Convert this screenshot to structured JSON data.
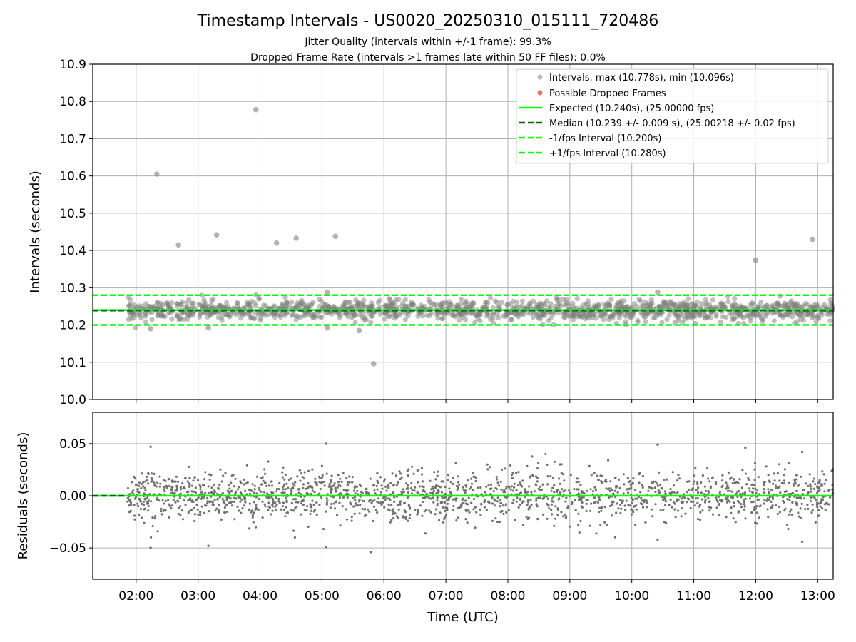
{
  "title": "Timestamp Intervals - US0020_20250310_015111_720486",
  "subtitle_line1": "Jitter Quality (intervals within +/-1 frame): 99.3%",
  "subtitle_line2": "Dropped Frame Rate (intervals >1 frames late within 50 FF files): 0.0%",
  "colors": {
    "points": "#808080",
    "dropped": "#ff6666",
    "expected": "#00ff00",
    "median": "#006400",
    "fps_band": "#00ff00",
    "grid": "#b0b0b0"
  },
  "chart_data": [
    {
      "type": "scatter",
      "ylabel": "Intervals (seconds)",
      "ylim": [
        10.0,
        10.9
      ],
      "xlim_hours": [
        1.3,
        13.25
      ],
      "yticks": [
        "10.0",
        "10.1",
        "10.2",
        "10.3",
        "10.4",
        "10.5",
        "10.6",
        "10.7",
        "10.8",
        "10.9"
      ],
      "grid": true,
      "legend_placement": "top-right",
      "legend": [
        "Intervals, max (10.778s), min (10.096s)",
        "Possible Dropped Frames",
        "Expected (10.240s), (25.00000 fps)",
        "Median (10.239 +/- 0.009 s), (25.00218 +/- 0.02 fps)",
        "-1/fps Interval (10.200s)",
        "+1/fps Interval (10.280s)"
      ],
      "lines": {
        "expected": 10.24,
        "median": 10.239,
        "minus_fps": 10.2,
        "plus_fps": 10.28
      },
      "core_band": {
        "x_start_hour": 1.86,
        "x_end_hour": 13.25,
        "center": 10.239,
        "spread": 0.035
      },
      "outliers": [
        {
          "x": "02:20",
          "y": 10.605
        },
        {
          "x": "02:41",
          "y": 10.415
        },
        {
          "x": "03:18",
          "y": 10.442
        },
        {
          "x": "03:56",
          "y": 10.778
        },
        {
          "x": "04:16",
          "y": 10.42
        },
        {
          "x": "04:35",
          "y": 10.433
        },
        {
          "x": "05:13",
          "y": 10.438
        },
        {
          "x": "05:50",
          "y": 10.096
        },
        {
          "x": "12:00",
          "y": 10.374
        },
        {
          "x": "12:55",
          "y": 10.43
        },
        {
          "x": "02:14",
          "y": 10.19
        },
        {
          "x": "03:10",
          "y": 10.192
        },
        {
          "x": "05:05",
          "y": 10.192
        },
        {
          "x": "05:36",
          "y": 10.185
        },
        {
          "x": "05:05",
          "y": 10.288
        },
        {
          "x": "10:25",
          "y": 10.288
        }
      ]
    },
    {
      "type": "scatter",
      "ylabel": "Residuals (seconds)",
      "xlabel": "Time (UTC)",
      "ylim": [
        -0.08,
        0.08
      ],
      "yticks": [
        "−0.05",
        "0.00",
        "0.05"
      ],
      "xticks": [
        "02:00",
        "03:00",
        "04:00",
        "05:00",
        "06:00",
        "07:00",
        "08:00",
        "09:00",
        "10:00",
        "11:00",
        "12:00",
        "13:00"
      ],
      "grid": true,
      "zero_line": 0.0,
      "outliers": [
        {
          "x": "02:14",
          "y": 0.047
        },
        {
          "x": "02:14",
          "y": -0.05
        },
        {
          "x": "03:10",
          "y": -0.048
        },
        {
          "x": "05:04",
          "y": 0.05
        },
        {
          "x": "05:04",
          "y": -0.049
        },
        {
          "x": "05:47",
          "y": -0.054
        },
        {
          "x": "10:25",
          "y": 0.049
        },
        {
          "x": "10:25",
          "y": -0.042
        },
        {
          "x": "11:50",
          "y": 0.046
        },
        {
          "x": "12:45",
          "y": 0.042
        },
        {
          "x": "12:45",
          "y": -0.044
        }
      ]
    }
  ]
}
